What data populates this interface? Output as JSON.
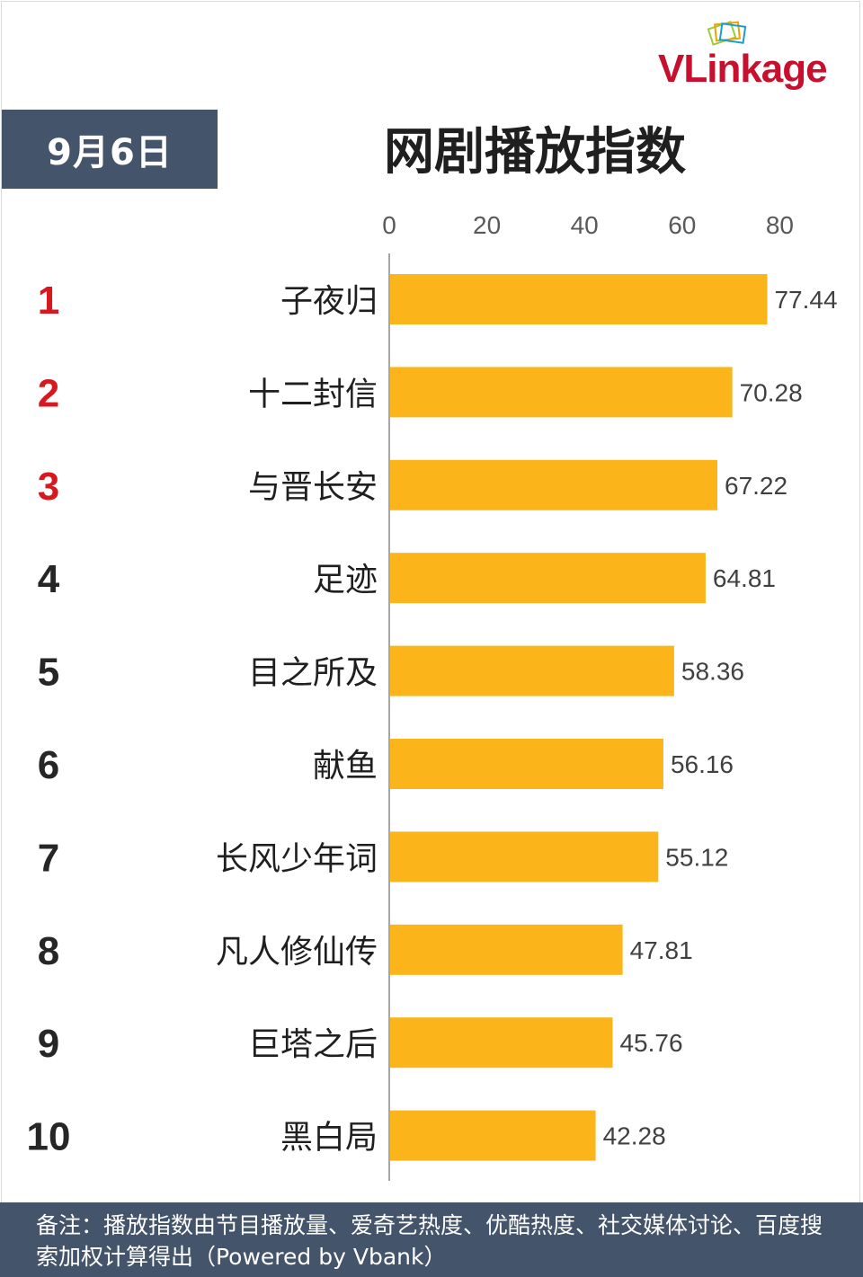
{
  "logo": {
    "text": "VLinkage"
  },
  "header": {
    "date": "9月6日",
    "title": "网剧播放指数"
  },
  "footer": {
    "note": "备注：播放指数由节目播放量、爱奇艺热度、优酷热度、社交媒体讨论、百度搜索加权计算得出（Powered by Vbank）"
  },
  "colors": {
    "bar": "#fbb41a",
    "top_rank": "#d7191f",
    "rank": "#262626",
    "header_bg": "#44546a",
    "logo": "#c8102e"
  },
  "chart_data": {
    "type": "bar",
    "orientation": "horizontal",
    "title": "网剧播放指数",
    "axis_ticks": [
      0,
      20,
      40,
      60,
      80
    ],
    "xlim": [
      0,
      80
    ],
    "ranks": [
      "1",
      "2",
      "3",
      "4",
      "5",
      "6",
      "7",
      "8",
      "9",
      "10"
    ],
    "categories": [
      "子夜归",
      "十二封信",
      "与晋长安",
      "足迹",
      "目之所及",
      "献鱼",
      "长风少年词",
      "凡人修仙传",
      "巨塔之后",
      "黑白局"
    ],
    "values": [
      77.44,
      70.28,
      67.22,
      64.81,
      58.36,
      56.16,
      55.12,
      47.81,
      45.76,
      42.28
    ],
    "value_labels": [
      "77.44",
      "70.28",
      "67.22",
      "64.81",
      "58.36",
      "56.16",
      "55.12",
      "47.81",
      "45.76",
      "42.28"
    ],
    "grid": false,
    "legend": "none"
  }
}
